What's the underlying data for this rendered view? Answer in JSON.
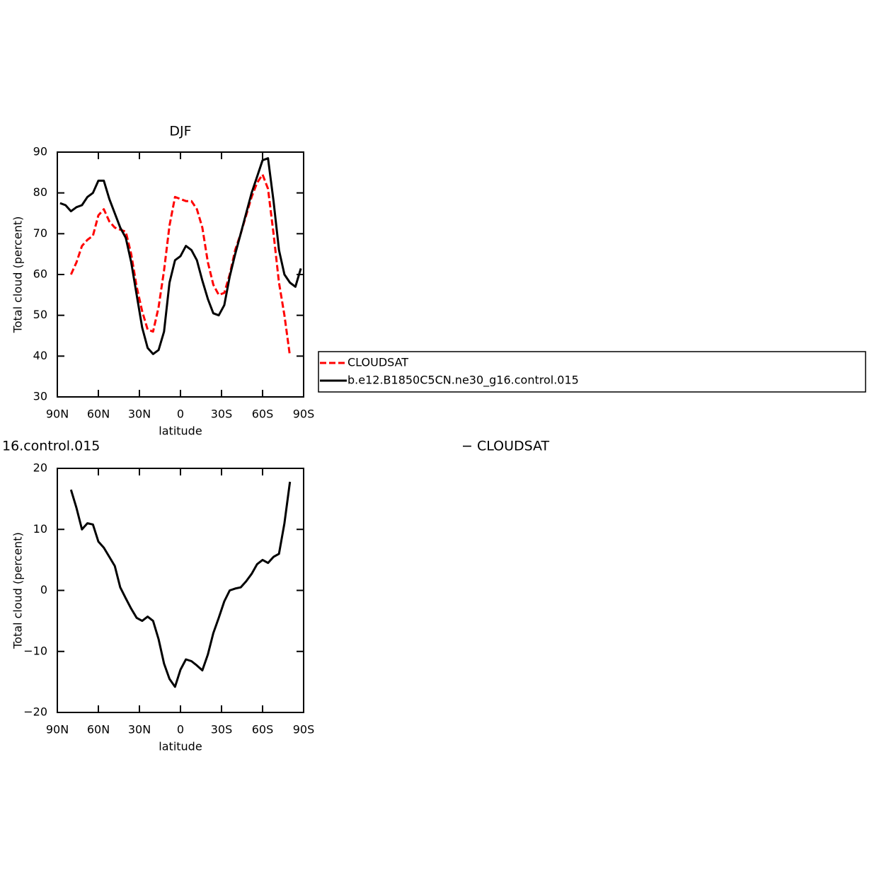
{
  "chart_data": [
    {
      "type": "line",
      "title": "DJF",
      "xlabel": "latitude",
      "ylabel": "Total cloud (percent)",
      "xlim": [
        90,
        -90
      ],
      "ylim": [
        30,
        90
      ],
      "xticks": [
        {
          "value": 90,
          "label": "90N"
        },
        {
          "value": 60,
          "label": "60N"
        },
        {
          "value": 30,
          "label": "30N"
        },
        0,
        {
          "value": -30,
          "label": "30S"
        },
        {
          "value": -60,
          "label": "60S"
        },
        {
          "value": -90,
          "label": "90S"
        }
      ],
      "yticks": [
        30,
        40,
        50,
        60,
        70,
        80,
        90
      ],
      "x": [
        88,
        84,
        80,
        76,
        72,
        68,
        64,
        60,
        56,
        52,
        48,
        44,
        40,
        36,
        32,
        28,
        24,
        20,
        16,
        12,
        8,
        4,
        0,
        -4,
        -8,
        -12,
        -16,
        -20,
        -24,
        -28,
        -32,
        -36,
        -40,
        -44,
        -48,
        -52,
        -56,
        -60,
        -64,
        -68,
        -72,
        -76,
        -80,
        -84,
        -88
      ],
      "series": [
        {
          "name": "CLOUDSAT",
          "color": "#ff0000",
          "dashed": true,
          "values": [
            null,
            null,
            60,
            63,
            67,
            68.5,
            69.5,
            74.5,
            76,
            73,
            71.5,
            71,
            70.5,
            65,
            57,
            51,
            46.5,
            46,
            52,
            61,
            72,
            79,
            78.5,
            78,
            78,
            76,
            71.5,
            63,
            57.5,
            55,
            55.5,
            60,
            66,
            70,
            74.5,
            79,
            82.5,
            84.5,
            81,
            70,
            58,
            50,
            40,
            null,
            null
          ]
        },
        {
          "name": "b.e12.B1850C5CN.ne30_g16.control.015",
          "color": "#000000",
          "dashed": false,
          "values": [
            77.5,
            77,
            75.5,
            76.5,
            77,
            79,
            80,
            83,
            83,
            78.5,
            75,
            71.5,
            69,
            63,
            55,
            47,
            42,
            40.5,
            41.5,
            46,
            58,
            63.5,
            64.5,
            67,
            66,
            63.5,
            58.5,
            54,
            50.5,
            50,
            52.5,
            59.5,
            65,
            70,
            75,
            80,
            84,
            88,
            88.5,
            78,
            66,
            60,
            58,
            57,
            61.5
          ]
        }
      ]
    },
    {
      "type": "line",
      "title_left": "16.control.015",
      "title_right": "− CLOUDSAT",
      "xlabel": "latitude",
      "ylabel": "Total cloud (percent)",
      "xlim": [
        90,
        -90
      ],
      "ylim": [
        -20,
        20
      ],
      "xticks": [
        {
          "value": 90,
          "label": "90N"
        },
        {
          "value": 60,
          "label": "60N"
        },
        {
          "value": 30,
          "label": "30N"
        },
        0,
        {
          "value": -30,
          "label": "30S"
        },
        {
          "value": -60,
          "label": "60S"
        },
        {
          "value": -90,
          "label": "90S"
        }
      ],
      "yticks": [
        {
          "value": -20,
          "label": "−20"
        },
        {
          "value": -10,
          "label": "−10"
        },
        0,
        10,
        20
      ],
      "x": [
        80,
        76,
        72,
        68,
        64,
        60,
        56,
        52,
        48,
        44,
        40,
        36,
        32,
        28,
        24,
        20,
        16,
        12,
        8,
        4,
        0,
        -4,
        -8,
        -12,
        -16,
        -20,
        -24,
        -28,
        -32,
        -36,
        -40,
        -44,
        -48,
        -52,
        -56,
        -60,
        -64,
        -68,
        -72,
        -76,
        -80
      ],
      "color": "#000000",
      "values": [
        16.5,
        13.5,
        10,
        11,
        10.8,
        8,
        7,
        5.5,
        4,
        0.5,
        -1.3,
        -3,
        -4.5,
        -5,
        -4.3,
        -5,
        -8,
        -12,
        -14.5,
        -15.8,
        -13,
        -11.3,
        -11.6,
        -12.3,
        -13.1,
        -10.5,
        -7,
        -4.5,
        -1.8,
        0,
        0.3,
        0.5,
        1.5,
        2.7,
        4.3,
        5,
        4.5,
        5.5,
        6,
        11,
        17.8
      ]
    }
  ]
}
